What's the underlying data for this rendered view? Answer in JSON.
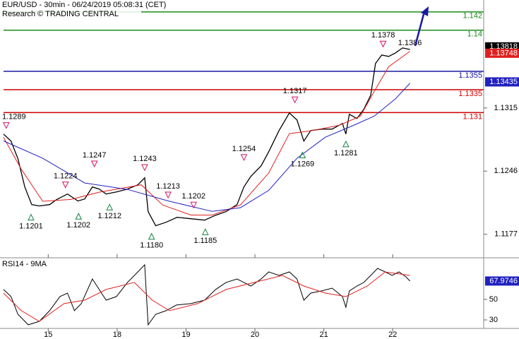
{
  "chart_data": {
    "type": "line",
    "title": "EUR/USD - 30min - 06/24/2019 05:08:31 (CET)",
    "subtitle": "Research © TRADING CENTRAL",
    "xlim": [
      -0.7,
      6.32
    ],
    "xticks": [
      {
        "value": 0,
        "label": "15"
      },
      {
        "value": 1,
        "label": "18"
      },
      {
        "value": 2,
        "label": "19"
      },
      {
        "value": 3,
        "label": "20"
      },
      {
        "value": 4,
        "label": "21"
      },
      {
        "value": 5,
        "label": "22"
      }
    ],
    "ylim": [
      1.1159,
      1.1433
    ],
    "yticks": [
      1.1177,
      1.1246,
      1.1315
    ],
    "series": [
      {
        "color": "#000000",
        "x": [
          -0.65,
          -0.54,
          -0.44,
          -0.34,
          -0.24,
          -0.13,
          0.02,
          0.12,
          0.28,
          0.43,
          0.53,
          0.64,
          0.74,
          0.84,
          0.99,
          1.15,
          1.3,
          1.4,
          1.45,
          1.56,
          1.71,
          1.87,
          2.07,
          2.27,
          2.43,
          2.58,
          2.74,
          2.84,
          2.94,
          3.09,
          3.2,
          3.35,
          3.5,
          3.61,
          3.71,
          3.81,
          3.97,
          4.12,
          4.27,
          4.32,
          4.37,
          4.48,
          4.58,
          4.68,
          4.75,
          4.84,
          4.94,
          5.04,
          5.14,
          5.25
        ],
        "values": [
          1.12865,
          1.12788,
          1.12595,
          1.12287,
          1.12094,
          1.12079,
          1.12094,
          1.12148,
          1.1221,
          1.12133,
          1.12156,
          1.12287,
          1.12264,
          1.1221,
          1.12233,
          1.12264,
          1.1231,
          1.12387,
          1.12017,
          1.11863,
          1.11901,
          1.11955,
          1.1194,
          1.11924,
          1.11978,
          1.12017,
          1.12094,
          1.12287,
          1.12402,
          1.12518,
          1.12672,
          1.12904,
          1.13096,
          1.13019,
          1.12788,
          1.12904,
          1.12919,
          1.12919,
          1.12981,
          1.12865,
          1.13081,
          1.13035,
          1.13135,
          1.13289,
          1.13636,
          1.13729,
          1.13713,
          1.13752,
          1.13806,
          1.1379
        ]
      },
      {
        "color": "#e02020",
        "x": [
          -0.65,
          -0.39,
          -0.08,
          0.33,
          0.74,
          1.35,
          1.66,
          2.07,
          2.38,
          2.79,
          3.2,
          3.5,
          3.81,
          4.22,
          4.53,
          4.73,
          4.94,
          5.25
        ],
        "values": [
          1.1283,
          1.1248,
          1.1213,
          1.1215,
          1.1223,
          1.1231,
          1.1209,
          1.1198,
          1.1198,
          1.1209,
          1.1244,
          1.1287,
          1.129,
          1.1296,
          1.1306,
          1.1333,
          1.136,
          1.1377
        ]
      },
      {
        "color": "#2020c0",
        "x": [
          -0.65,
          -0.08,
          0.53,
          1.15,
          1.76,
          2.38,
          2.79,
          3.2,
          3.61,
          4.02,
          4.43,
          4.73,
          5.04,
          5.25
        ],
        "values": [
          1.1279,
          1.126,
          1.1233,
          1.1226,
          1.1213,
          1.1202,
          1.1206,
          1.1225,
          1.126,
          1.1283,
          1.1296,
          1.1306,
          1.1325,
          1.1342
        ]
      }
    ],
    "levels": [
      {
        "value": 1.142,
        "color": "#1a8c1a"
      },
      {
        "value": 1.14,
        "color": "#1a8c1a"
      },
      {
        "value": 1.1355,
        "color": "#1a1aa0"
      },
      {
        "value": 1.1335,
        "color": "#cc0000"
      },
      {
        "value": 1.131,
        "color": "#cc0000"
      }
    ],
    "annotations": [
      {
        "kind": "high",
        "x": -0.61,
        "value": 1.1289,
        "label": "1.1289"
      },
      {
        "kind": "high",
        "x": 0.25,
        "value": 1.1224,
        "label": "1.1224"
      },
      {
        "kind": "high",
        "x": 0.67,
        "value": 1.1247,
        "label": "1.1247"
      },
      {
        "kind": "high",
        "x": 1.4,
        "value": 1.1243,
        "label": "1.1243"
      },
      {
        "kind": "high",
        "x": 1.74,
        "value": 1.1213,
        "label": "1.1213"
      },
      {
        "kind": "high",
        "x": 2.11,
        "value": 1.1202,
        "label": "1.1202"
      },
      {
        "kind": "high",
        "x": 2.84,
        "value": 1.1254,
        "label": "1.1254"
      },
      {
        "kind": "high",
        "x": 3.58,
        "value": 1.1317,
        "label": "1.1317"
      },
      {
        "kind": "high",
        "x": 4.86,
        "value": 1.1378,
        "label": "1.1378"
      },
      {
        "kind": "text",
        "x": 5.25,
        "value": 1.1386,
        "label": "1.1386"
      },
      {
        "kind": "low",
        "x": -0.25,
        "value": 1.1201,
        "label": "1.1201"
      },
      {
        "kind": "low",
        "x": 0.44,
        "value": 1.1202,
        "label": "1.1202"
      },
      {
        "kind": "low",
        "x": 0.89,
        "value": 1.1212,
        "label": "1.1212"
      },
      {
        "kind": "low",
        "x": 1.5,
        "value": 1.118,
        "label": "1.1180"
      },
      {
        "kind": "low",
        "x": 2.28,
        "value": 1.1185,
        "label": "1.1185"
      },
      {
        "kind": "low",
        "x": 3.69,
        "value": 1.1269,
        "label": "1.1269"
      },
      {
        "kind": "low",
        "x": 4.32,
        "value": 1.1281,
        "label": "1.1281"
      }
    ],
    "price_tags": [
      {
        "value": 1.13818,
        "color": "#000000"
      },
      {
        "value": 1.13748,
        "color": "#e02020"
      },
      {
        "value": 1.13435,
        "color": "#2020c0"
      }
    ],
    "rsi": {
      "title": "RSI14 - 9MA",
      "ylim": [
        21.7,
        87.9
      ],
      "yticks": [
        30,
        50
      ],
      "series": [
        {
          "color": "#000000",
          "x": [
            -0.65,
            -0.54,
            -0.44,
            -0.29,
            -0.13,
            0.02,
            0.17,
            0.28,
            0.38,
            0.48,
            0.64,
            0.74,
            0.84,
            0.99,
            1.15,
            1.3,
            1.4,
            1.45,
            1.56,
            1.71,
            1.86,
            2.07,
            2.27,
            2.43,
            2.58,
            2.74,
            2.84,
            2.94,
            3.09,
            3.2,
            3.35,
            3.5,
            3.61,
            3.71,
            3.81,
            3.97,
            4.12,
            4.27,
            4.32,
            4.37,
            4.48,
            4.58,
            4.68,
            4.78,
            4.89,
            4.99,
            5.09,
            5.19,
            5.25
          ],
          "values": [
            59.7,
            52.8,
            35.5,
            25.2,
            28.6,
            39.0,
            52.8,
            56.2,
            39.0,
            45.9,
            70.0,
            59.7,
            49.3,
            52.8,
            66.6,
            76.9,
            83.8,
            25.2,
            35.5,
            39.0,
            44.5,
            45.9,
            49.3,
            59.7,
            66.6,
            70.0,
            66.6,
            63.1,
            70.0,
            76.9,
            73.4,
            76.9,
            70.0,
            49.3,
            56.2,
            58.3,
            61.0,
            52.8,
            42.4,
            58.3,
            63.1,
            66.6,
            73.4,
            80.3,
            76.9,
            73.4,
            76.9,
            72.1,
            67.97
          ]
        },
        {
          "color": "#e02020",
          "x": [
            -0.65,
            -0.39,
            -0.13,
            0.23,
            0.53,
            0.84,
            1.25,
            1.51,
            1.76,
            2.17,
            2.58,
            2.99,
            3.4,
            3.71,
            4.02,
            4.32,
            4.63,
            4.89,
            5.25
          ],
          "values": [
            56.2,
            39.0,
            28.6,
            45.9,
            49.3,
            59.7,
            66.6,
            49.3,
            39.0,
            45.9,
            59.7,
            66.6,
            73.4,
            63.1,
            56.2,
            52.8,
            63.1,
            76.9,
            73.4
          ]
        }
      ],
      "tags": [
        {
          "value": 67.9746,
          "color": "#2020c0"
        }
      ]
    }
  }
}
